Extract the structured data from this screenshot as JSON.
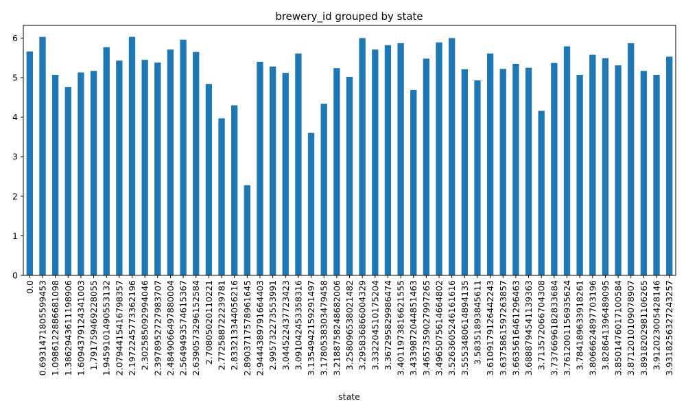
{
  "chart_data": {
    "type": "bar",
    "title": "brewery_id grouped by state",
    "xlabel": "state",
    "ylabel": "",
    "ylim": [
      0,
      6.32
    ],
    "yticks": [
      0,
      1,
      2,
      3,
      4,
      5,
      6
    ],
    "grid": false,
    "legend": "none",
    "bar_color": "#1f77b4",
    "categories": [
      "0.0",
      "0.6931471805599453",
      "1.0986122886681098",
      "1.3862943611198906",
      "1.6094379124341003",
      "1.791759469228055",
      "1.9459101490553132",
      "2.0794415416798357",
      "2.1972245773362196",
      "2.302585092994046",
      "2.3978952727983707",
      "2.4849066497880004",
      "2.5649493574615367",
      "2.6390573296152584",
      "2.70805020110221",
      "2.772588722239781",
      "2.833213344056216",
      "2.8903717578961645",
      "2.9444389791664403",
      "2.995732273553991",
      "3.044522437723423",
      "3.091042453358316",
      "3.1354942159291497",
      "3.1780538303479458",
      "3.2188758248682006",
      "3.258096538021482",
      "3.295836866004329",
      "3.332204510175204",
      "3.367295829986474",
      "3.4011973816621555",
      "3.4339872044851463",
      "3.4657359027997265",
      "3.4965075614664802",
      "3.5263605246161616",
      "3.5553480614894135",
      "3.58351893845611",
      "3.6109179126442243",
      "3.6375861597263857",
      "3.6635616461296463",
      "3.6888794541139363",
      "3.713572066704308",
      "3.7376696182833684",
      "3.7612001156935624",
      "3.784189633918261",
      "3.8066624897703196",
      "3.828641396489095",
      "3.8501476017100584",
      "3.8712010109078907",
      "3.8918202981106265",
      "3.912023005428146",
      "3.9318256327243257"
    ],
    "values": [
      5.66,
      6.03,
      5.07,
      4.76,
      5.13,
      5.17,
      5.77,
      5.43,
      6.03,
      5.45,
      5.38,
      5.71,
      5.96,
      5.65,
      4.84,
      3.97,
      4.3,
      2.28,
      5.4,
      5.28,
      5.12,
      5.61,
      3.6,
      4.34,
      5.24,
      5.02,
      6.0,
      5.71,
      5.82,
      5.87,
      4.69,
      5.48,
      5.89,
      6.0,
      5.21,
      4.93,
      5.61,
      5.22,
      5.35,
      5.25,
      4.16,
      5.37,
      5.79,
      5.07,
      5.58,
      5.49,
      5.31,
      5.87,
      5.17,
      5.07,
      5.53
    ]
  }
}
